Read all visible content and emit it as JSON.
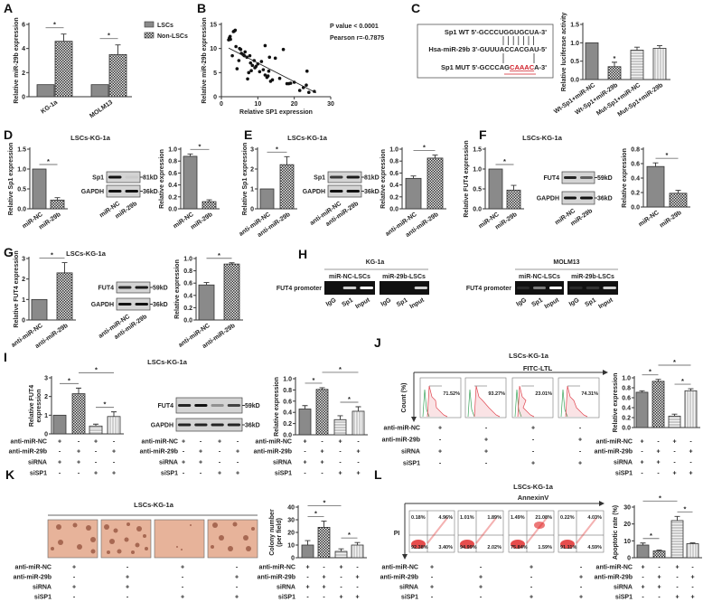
{
  "panel_letters": [
    "A",
    "B",
    "C",
    "D",
    "E",
    "F",
    "G",
    "H",
    "I",
    "J",
    "K",
    "L"
  ],
  "cell_title": "LSCs-KG-1a",
  "legend_A": [
    "LSCs",
    "Non-LSCs"
  ],
  "stats_B": {
    "p": "P value < 0.0001",
    "r": "Pearson r=-0.7875"
  },
  "sequences": {
    "wt_label": "Sp1  WT",
    "wt_seq": "5'-GCCCUGGUGCUA-3'",
    "mir_label": "Hsa-miR-29b",
    "mir_seq": "3'-GUUUACCACGAU-5'",
    "mut_label": "Sp1 MUT",
    "mut_seq_a": "5'-GCCCAG",
    "mut_seq_mut": "CAAAC",
    "mut_seq_b": "A-3'",
    "mut_color": "#d0202a"
  },
  "blots": {
    "D": {
      "rows": [
        "Sp1",
        "GAPDH"
      ],
      "kd": [
        "81kD",
        "36kD"
      ],
      "lanes": [
        "miR-NC",
        "miR-29b"
      ]
    },
    "E": {
      "rows": [
        "Sp1",
        "GAPDH"
      ],
      "kd": [
        "81kD",
        "36kD"
      ],
      "lanes": [
        "anti-miR-NC",
        "anti-miR-29b"
      ]
    },
    "F": {
      "rows": [
        "FUT4",
        "GAPDH"
      ],
      "kd": [
        "59kD",
        "36kD"
      ],
      "lanes": [
        "miR-NC",
        "miR-29b"
      ]
    },
    "G": {
      "rows": [
        "FUT4",
        "GAPDH"
      ],
      "kd": [
        "59kD",
        "36kD"
      ],
      "lanes": [
        "anti-miR-NC",
        "anti-miR-29b"
      ]
    },
    "I": {
      "rows": [
        "FUT4",
        "GAPDH"
      ],
      "kd": [
        "59kD",
        "36kD"
      ]
    }
  },
  "chip_H": {
    "row_label": "FUT4 promoter",
    "groups": [
      {
        "title": "KG-1a",
        "sub": [
          "miR-NC-LSCs",
          "miR-29b-LSCs"
        ]
      },
      {
        "title": "MOLM13",
        "sub": [
          "miR-NC-LSCs",
          "miR-29b-LSCs"
        ]
      }
    ],
    "lanes": [
      "IgG",
      "Sp1",
      "Input"
    ]
  },
  "treatments": [
    {
      "label": "anti-miR-NC",
      "signs": [
        "+",
        "-",
        "+",
        "-"
      ]
    },
    {
      "label": "anti-miR-29b",
      "signs": [
        "-",
        "+",
        "-",
        "+"
      ]
    },
    {
      "label": "siRNA",
      "signs": [
        "+",
        "+",
        "-",
        "-"
      ]
    },
    {
      "label": "siSP1",
      "signs": [
        "-",
        "-",
        "+",
        "+"
      ]
    }
  ],
  "flow_J": {
    "title": "FITC-LTL",
    "ylabel": "Count (%)",
    "percent": [
      "71.52%",
      "93.27%",
      "23.01%",
      "74.31%"
    ],
    "colors": {
      "control": "#3aa35a",
      "sample": "#e0454f"
    }
  },
  "flow_L": {
    "title": "AnnexinV",
    "ylabel": "PI",
    "quadrants": [
      [
        "0.18%",
        "4.96%",
        "92.38%",
        "3.40%"
      ],
      [
        "1.01%",
        "1.89%",
        "94.99%",
        "2.02%"
      ],
      [
        "1.49%",
        "21.08%",
        "75.84%",
        "1.59%"
      ],
      [
        "0.22%",
        "4.03%",
        "91.11%",
        "4.59%"
      ]
    ],
    "color": "#e02020"
  },
  "colony_K": {
    "bg": "#e7b39a",
    "colony": "#9b5a45"
  },
  "chart_data": [
    {
      "id": "A",
      "type": "bar",
      "ylabel": "Relative miR-29b expression",
      "categories": [
        "KG-1a",
        "MOLM13"
      ],
      "series": [
        {
          "name": "LSCs",
          "values": [
            1,
            1
          ],
          "err": [
            0,
            0
          ]
        },
        {
          "name": "Non-LSCs",
          "values": [
            4.6,
            3.5
          ],
          "err": [
            0.6,
            0.8
          ]
        }
      ],
      "ylim": [
        0,
        6
      ],
      "yticks": [
        "0",
        "2",
        "4",
        "6"
      ],
      "significance": [
        [
          0,
          1
        ],
        [
          2,
          3
        ]
      ],
      "sig_label": "*"
    },
    {
      "id": "B",
      "type": "scatter",
      "xlabel": "Relative SP1 expression",
      "ylabel": "Relative miR-29b expression",
      "xlim": [
        0,
        30
      ],
      "ylim": [
        0,
        15
      ],
      "xticks": [
        "0",
        "10",
        "20",
        "30"
      ],
      "yticks": [
        "0",
        "5",
        "10",
        "15"
      ],
      "points": [
        [
          2,
          11.8
        ],
        [
          2.2,
          12.2
        ],
        [
          2.4,
          12.5
        ],
        [
          2.5,
          11.9
        ],
        [
          3.3,
          13.5
        ],
        [
          3.5,
          13.6
        ],
        [
          3.8,
          13.8
        ],
        [
          3,
          8.5
        ],
        [
          4,
          10.4
        ],
        [
          4.3,
          5.8
        ],
        [
          4.8,
          7.5
        ],
        [
          5,
          10
        ],
        [
          5.3,
          9.8
        ],
        [
          5.5,
          9
        ],
        [
          6,
          8.7
        ],
        [
          6.3,
          8.5
        ],
        [
          6.5,
          9.3
        ],
        [
          7,
          8.2
        ],
        [
          7.2,
          3.7
        ],
        [
          7.5,
          5
        ],
        [
          7.8,
          8.5
        ],
        [
          8,
          7
        ],
        [
          8.2,
          5.4
        ],
        [
          8.5,
          6.5
        ],
        [
          9,
          7.5
        ],
        [
          9.2,
          6
        ],
        [
          9.5,
          6.3
        ],
        [
          10,
          6.8
        ],
        [
          10.5,
          5.2
        ],
        [
          11,
          7.3
        ],
        [
          11.5,
          5.6
        ],
        [
          12,
          10.6
        ],
        [
          12,
          4.5
        ],
        [
          12.5,
          4
        ],
        [
          12.8,
          4.3
        ],
        [
          13,
          5.3
        ],
        [
          13.2,
          8.2
        ],
        [
          13.5,
          3.2
        ],
        [
          14,
          3.5
        ],
        [
          14.8,
          8
        ],
        [
          16,
          3.8
        ],
        [
          17,
          9.8
        ],
        [
          18,
          2.7
        ],
        [
          18.5,
          2.7
        ],
        [
          19,
          2.8
        ],
        [
          20,
          3
        ],
        [
          21.5,
          1.3
        ],
        [
          22.5,
          1.9
        ],
        [
          23.3,
          2.4
        ],
        [
          23.5,
          5.3
        ],
        [
          24,
          0.9
        ],
        [
          25.5,
          1.1
        ]
      ],
      "fit_line": {
        "x": [
          2,
          26
        ],
        "y": [
          10.1,
          0.8
        ]
      }
    },
    {
      "id": "C",
      "type": "bar",
      "ylabel": "Relative luciferase activity",
      "categories": [
        "Wt-Sp1+miR-NC",
        "Wt-Sp1+miR-29b",
        "Mut-Sp1+miR-NC",
        "Mut-Sp1+miR-29b"
      ],
      "values": [
        1.0,
        0.35,
        0.8,
        0.85
      ],
      "err": [
        0,
        0.12,
        0.08,
        0.07
      ],
      "fills": [
        "solid",
        "checker",
        "hstripe",
        "vstripe"
      ],
      "ylim": [
        0,
        1.5
      ],
      "yticks": [
        "0.0",
        "0.5",
        "1.0",
        "1.5"
      ],
      "star_over": [
        1
      ],
      "sig_label": "*"
    },
    {
      "id": "D1",
      "type": "bar",
      "ylabel": "Relative Sp1 expression",
      "categories": [
        "miR-NC",
        "miR-29b"
      ],
      "values": [
        1.0,
        0.22
      ],
      "err": [
        0,
        0.06
      ],
      "fills": [
        "solid",
        "checker"
      ],
      "ylim": [
        0,
        1.5
      ],
      "yticks": [
        "0.0",
        "0.5",
        "1.0",
        "1.5"
      ],
      "significance": [
        [
          0,
          1
        ]
      ],
      "sig_label": "*"
    },
    {
      "id": "D2",
      "type": "bar",
      "ylabel": "Relative expression",
      "categories": [
        "miR-NC",
        "miR-29b"
      ],
      "values": [
        0.88,
        0.12
      ],
      "err": [
        0.04,
        0.03
      ],
      "fills": [
        "solid",
        "checker"
      ],
      "ylim": [
        0,
        1.0
      ],
      "yticks": [
        "0.0",
        "0.2",
        "0.4",
        "0.6",
        "0.8",
        "1.0"
      ],
      "significance": [
        [
          0,
          1
        ]
      ],
      "sig_label": "*"
    },
    {
      "id": "E1",
      "type": "bar",
      "ylabel": "Relative Sp1 expression",
      "categories": [
        "anti-miR-NC",
        "anti-miR-29b"
      ],
      "values": [
        1.0,
        2.22
      ],
      "err": [
        0,
        0.4
      ],
      "fills": [
        "solid",
        "checker"
      ],
      "ylim": [
        0,
        3
      ],
      "yticks": [
        "0",
        "1",
        "2",
        "3"
      ],
      "significance": [
        [
          0,
          1
        ]
      ],
      "sig_label": "*"
    },
    {
      "id": "E2",
      "type": "bar",
      "ylabel": "Relative expression",
      "categories": [
        "anti-miR-NC",
        "anti-miR-29b"
      ],
      "values": [
        0.51,
        0.85
      ],
      "err": [
        0.04,
        0.05
      ],
      "fills": [
        "solid",
        "checker"
      ],
      "ylim": [
        0,
        1.0
      ],
      "yticks": [
        "0.0",
        "0.2",
        "0.4",
        "0.6",
        "0.8",
        "1.0"
      ],
      "significance": [
        [
          0,
          1
        ]
      ],
      "sig_label": "*"
    },
    {
      "id": "F1",
      "type": "bar",
      "ylabel": "Relative FUT4 expression",
      "categories": [
        "miR-NC",
        "miR-29b"
      ],
      "values": [
        1.0,
        0.47
      ],
      "err": [
        0,
        0.12
      ],
      "fills": [
        "solid",
        "checker"
      ],
      "ylim": [
        0,
        1.5
      ],
      "yticks": [
        "0.0",
        "0.5",
        "1.0",
        "1.5"
      ],
      "significance": [
        [
          0,
          1
        ]
      ],
      "sig_label": "*"
    },
    {
      "id": "F2",
      "type": "bar",
      "ylabel": "Relative expression",
      "categories": [
        "miR-NC",
        "miR-29b"
      ],
      "values": [
        0.56,
        0.19
      ],
      "err": [
        0.05,
        0.04
      ],
      "fills": [
        "solid",
        "checker"
      ],
      "ylim": [
        0,
        0.8
      ],
      "yticks": [
        "0.0",
        "0.2",
        "0.4",
        "0.6",
        "0.8"
      ],
      "significance": [
        [
          0,
          1
        ]
      ],
      "sig_label": "*"
    },
    {
      "id": "G1",
      "type": "bar",
      "ylabel": "Relative FUT4 expression",
      "categories": [
        "anti-miR-NC",
        "anti-miR-29b"
      ],
      "values": [
        1.0,
        2.3
      ],
      "err": [
        0,
        0.5
      ],
      "fills": [
        "solid",
        "checker"
      ],
      "ylim": [
        0,
        3
      ],
      "yticks": [
        "0",
        "1",
        "2",
        "3"
      ],
      "significance": [
        [
          0,
          1
        ]
      ],
      "sig_label": "*"
    },
    {
      "id": "G2",
      "type": "bar",
      "ylabel": "Relative expression",
      "categories": [
        "anti-miR-NC",
        "anti-miR-29b"
      ],
      "values": [
        0.57,
        0.91
      ],
      "err": [
        0.04,
        0.02
      ],
      "fills": [
        "solid",
        "checker"
      ],
      "ylim": [
        0,
        1.0
      ],
      "yticks": [
        "0.0",
        "0.2",
        "0.4",
        "0.6",
        "0.8",
        "1.0"
      ],
      "significance": [
        [
          0,
          1
        ]
      ],
      "sig_label": "*"
    },
    {
      "id": "I1",
      "type": "bar",
      "ylabel": "Relative FUT4",
      "ylabel2": "expression",
      "values": [
        1.0,
        2.15,
        0.42,
        0.93
      ],
      "err": [
        0,
        0.3,
        0.1,
        0.25
      ],
      "fills": [
        "solid",
        "checker",
        "hstripe",
        "vstripe"
      ],
      "ylim": [
        0,
        3
      ],
      "yticks": [
        "0",
        "1",
        "2",
        "3"
      ],
      "significance": [
        [
          0,
          1
        ],
        [
          1,
          3
        ],
        [
          2,
          3
        ]
      ],
      "sig_label": "*"
    },
    {
      "id": "I2",
      "type": "bar",
      "ylabel": "Relative expression",
      "values": [
        0.46,
        0.81,
        0.27,
        0.42
      ],
      "err": [
        0.06,
        0.03,
        0.07,
        0.08
      ],
      "fills": [
        "solid",
        "checker",
        "hstripe",
        "vstripe"
      ],
      "ylim": [
        0,
        1.0
      ],
      "yticks": [
        "0.0",
        "0.2",
        "0.4",
        "0.6",
        "0.8",
        "1.0"
      ],
      "significance": [
        [
          0,
          1
        ],
        [
          1,
          3
        ],
        [
          2,
          3
        ]
      ],
      "sig_label": "*"
    },
    {
      "id": "J",
      "type": "bar",
      "ylabel": "Relative expression",
      "values": [
        0.71,
        0.93,
        0.23,
        0.74
      ],
      "err": [
        0.03,
        0.04,
        0.04,
        0.04
      ],
      "fills": [
        "solid",
        "checker",
        "hstripe",
        "vstripe"
      ],
      "ylim": [
        0,
        1.0
      ],
      "yticks": [
        "0.0",
        "0.2",
        "0.4",
        "0.6",
        "0.8",
        "1.0"
      ],
      "significance": [
        [
          0,
          1
        ],
        [
          1,
          3
        ],
        [
          2,
          3
        ]
      ],
      "sig_label": "*"
    },
    {
      "id": "K",
      "type": "bar",
      "ylabel": "Colony number",
      "ylabel2": "(per field)",
      "values": [
        10,
        24,
        5,
        10
      ],
      "err": [
        3.5,
        5,
        2,
        2
      ],
      "fills": [
        "solid",
        "checker",
        "hstripe",
        "vstripe"
      ],
      "ylim": [
        0,
        40
      ],
      "yticks": [
        "0",
        "10",
        "20",
        "30",
        "40"
      ],
      "significance": [
        [
          0,
          1
        ],
        [
          0,
          2
        ],
        [
          2,
          3
        ]
      ],
      "sig_label": "*"
    },
    {
      "id": "L",
      "type": "bar",
      "ylabel": "Apoptotic rate (%)",
      "values": [
        7.5,
        4,
        22,
        8.3
      ],
      "err": [
        1.2,
        0.5,
        2.5,
        0.5
      ],
      "fills": [
        "solid",
        "checker",
        "hstripe",
        "vstripe"
      ],
      "ylim": [
        0,
        30
      ],
      "yticks": [
        "0",
        "10",
        "20",
        "30"
      ],
      "significance": [
        [
          0,
          1
        ],
        [
          0,
          2
        ],
        [
          2,
          3
        ]
      ],
      "sig_label": "*"
    }
  ]
}
